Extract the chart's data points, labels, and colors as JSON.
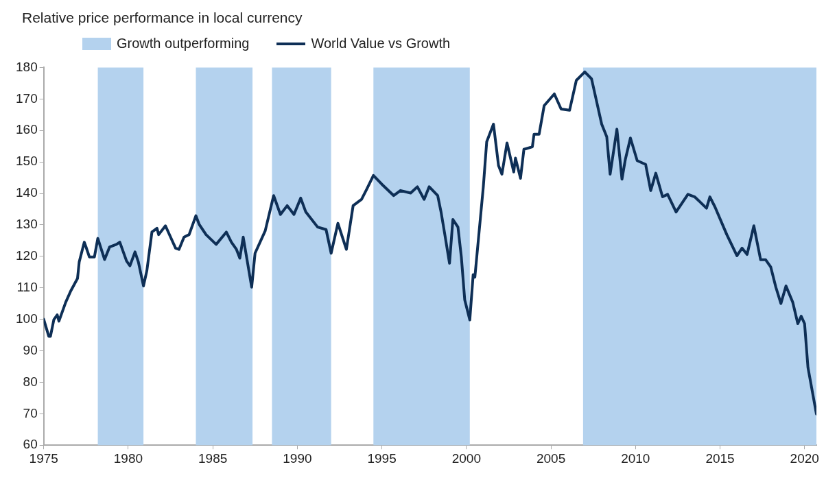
{
  "chart_data": {
    "type": "line",
    "title": "Relative price performance in local currency",
    "series": [
      {
        "name": "World Value vs Growth",
        "color": "#0e2f56",
        "x": [
          1975.0,
          1975.3,
          1975.4,
          1975.6,
          1975.8,
          1975.9,
          1976.3,
          1976.6,
          1977.0,
          1977.1,
          1977.4,
          1977.5,
          1977.7,
          1978.0,
          1978.2,
          1978.6,
          1978.9,
          1979.3,
          1979.5,
          1979.9,
          1980.1,
          1980.4,
          1980.6,
          1980.9,
          1981.1,
          1981.4,
          1981.7,
          1981.8,
          1982.2,
          1982.8,
          1983.0,
          1983.3,
          1983.6,
          1984.0,
          1984.2,
          1984.6,
          1985.2,
          1985.8,
          1986.1,
          1986.4,
          1986.6,
          1986.8,
          1987.3,
          1987.5,
          1988.1,
          1988.6,
          1989.0,
          1989.4,
          1989.8,
          1990.2,
          1990.5,
          1991.2,
          1991.7,
          1992.0,
          1992.4,
          1992.9,
          1993.3,
          1993.8,
          1994.1,
          1994.5,
          1995.0,
          1995.7,
          1996.1,
          1996.7,
          1997.1,
          1997.5,
          1997.8,
          1998.3,
          1998.5,
          1998.7,
          1999.0,
          1999.2,
          1999.5,
          1999.7,
          1999.9,
          2000.2,
          2000.4,
          2000.5,
          2001.0,
          2001.2,
          2001.6,
          2001.9,
          2002.1,
          2002.4,
          2002.8,
          2002.9,
          2003.2,
          2003.4,
          2003.9,
          2004.0,
          2004.3,
          2004.6,
          2005.2,
          2005.6,
          2006.1,
          2006.5,
          2007.0,
          2007.4,
          2008.0,
          2008.3,
          2008.5,
          2008.9,
          2009.2,
          2009.4,
          2009.7,
          2010.1,
          2010.6,
          2010.9,
          2011.2,
          2011.6,
          2011.9,
          2012.4,
          2013.1,
          2013.5,
          2014.2,
          2014.4,
          2014.7,
          2015.4,
          2016.0,
          2016.3,
          2016.6,
          2017.0,
          2017.4,
          2017.7,
          2018.0,
          2018.3,
          2018.6,
          2018.9,
          2019.3,
          2019.6,
          2019.8,
          2020.0,
          2020.2,
          2020.7
        ],
        "values": [
          100,
          94.6,
          94.6,
          99.9,
          101.4,
          99.4,
          105.4,
          109,
          113,
          118.2,
          124.5,
          123,
          119.8,
          119.8,
          125.7,
          119,
          123,
          123.8,
          124.5,
          118.5,
          117,
          121.4,
          118.2,
          110.6,
          115.4,
          127.7,
          128.9,
          126.9,
          129.7,
          122.6,
          122.2,
          126.1,
          126.9,
          132.9,
          130.1,
          126.9,
          123.8,
          127.7,
          124.5,
          122.2,
          119.4,
          126.1,
          110.2,
          121,
          128.1,
          139.3,
          133.3,
          136.1,
          133.3,
          138.5,
          134.1,
          129.3,
          128.5,
          121,
          130.5,
          122.2,
          136.1,
          138.1,
          141.3,
          145.7,
          142.9,
          139.3,
          140.9,
          140.1,
          142.1,
          138.1,
          142.1,
          139.3,
          134.1,
          127.7,
          117.8,
          131.7,
          129.3,
          119.8,
          106.2,
          99.8,
          114.2,
          113.4,
          142.1,
          156.4,
          162,
          148.8,
          146.1,
          156,
          146.8,
          151.2,
          144.8,
          154,
          154.8,
          158.8,
          158.8,
          167.9,
          171.6,
          166.8,
          166.4,
          175.9,
          178.6,
          176.4,
          162,
          158,
          146.1,
          160.4,
          144.5,
          150.8,
          157.6,
          150.4,
          149.2,
          140.9,
          146.4,
          138.9,
          139.7,
          134.1,
          139.7,
          138.9,
          135.3,
          138.9,
          135.7,
          126.9,
          120.2,
          122.6,
          120.6,
          129.7,
          118.9,
          118.9,
          116.6,
          110.2,
          105,
          110.6,
          105.4,
          98.6,
          101,
          98.6,
          84.7,
          69.9
        ]
      }
    ],
    "xlim": [
      1975,
      2020.7
    ],
    "xticks": [
      1975,
      1980,
      1985,
      1990,
      1995,
      2000,
      2005,
      2010,
      2015,
      2020
    ],
    "ylim": [
      60,
      180
    ],
    "yticks": [
      60,
      70,
      80,
      90,
      100,
      110,
      120,
      130,
      140,
      150,
      160,
      170,
      180
    ],
    "bands": [
      {
        "axis": "x",
        "from": 1978.2,
        "to": 1980.9,
        "label": "Growth outperforming",
        "color": "#b4d2ee"
      },
      {
        "axis": "x",
        "from": 1984.0,
        "to": 1987.35,
        "color": "#b4d2ee"
      },
      {
        "axis": "x",
        "from": 1988.5,
        "to": 1992.0,
        "color": "#b4d2ee"
      },
      {
        "axis": "x",
        "from": 1994.5,
        "to": 2000.2,
        "color": "#b4d2ee"
      },
      {
        "axis": "x",
        "from": 2006.9,
        "to": 2020.7,
        "color": "#b4d2ee"
      }
    ],
    "grid": false,
    "legend": "top left",
    "marker": "none",
    "line_style": "solid"
  }
}
